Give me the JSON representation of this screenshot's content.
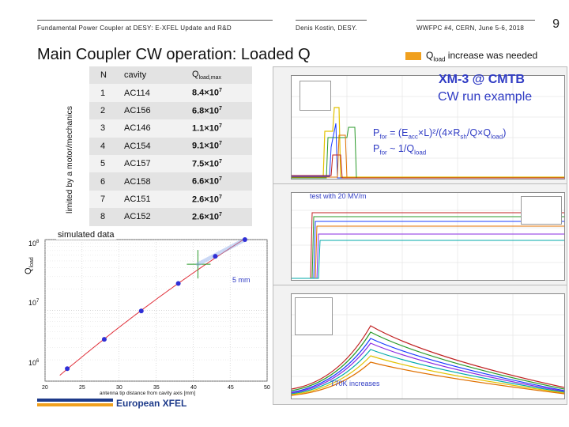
{
  "header": {
    "left": "Fundamental Power Coupler at DESY: E-XFEL Update and R&D",
    "middle": "Denis Kostin, DESY.",
    "right": "WWFPC #4, CERN, June 5-6, 2018",
    "page_number": "9"
  },
  "title": "Main Coupler CW operation: Loaded Q",
  "q_increase": {
    "prefix": "Q",
    "sub": "load",
    "suffix": " increase was needed",
    "color": "#f0a01e"
  },
  "vertical_label": "limited by a motor/mechanics",
  "table": {
    "headers": {
      "n": "N",
      "cavity": "cavity",
      "q": "Q",
      "q_sub": "load,max"
    },
    "rows": [
      {
        "n": "1",
        "cavity": "AC114",
        "mant": "8.4×10",
        "exp": "7"
      },
      {
        "n": "2",
        "cavity": "AC156",
        "mant": "6.8×10",
        "exp": "7"
      },
      {
        "n": "3",
        "cavity": "AC146",
        "mant": "1.1×10",
        "exp": "7"
      },
      {
        "n": "4",
        "cavity": "AC154",
        "mant": "9.1×10",
        "exp": "7"
      },
      {
        "n": "5",
        "cavity": "AC157",
        "mant": "7.5×10",
        "exp": "7"
      },
      {
        "n": "6",
        "cavity": "AC158",
        "mant": "6.6×10",
        "exp": "7"
      },
      {
        "n": "7",
        "cavity": "AC151",
        "mant": "2.6×10",
        "exp": "7"
      },
      {
        "n": "8",
        "cavity": "AC152",
        "mant": "2.6×10",
        "exp": "7"
      }
    ]
  },
  "annotations": {
    "xm3": "XM-3 @ CMTB",
    "cw_run": "CW run example",
    "pfor1": {
      "a": "P",
      "a_sub": "for",
      "b": " = (E",
      "b_sub": "acc",
      "c": "×L)²/(4×R",
      "c_sub": "sh",
      "d": "/Q×Q",
      "d_sub": "load",
      "e": ")"
    },
    "pfor2": {
      "a": "P",
      "a_sub": "for",
      "b": " ~ 1/Q",
      "b_sub": "load"
    },
    "test20": "test with 20 MV/m",
    "t70k": "T70K increases",
    "sim_data": "simulated data",
    "mm5": "5 mm"
  },
  "sim_chart": {
    "ylabel": "Q",
    "ylabel_sub": "load",
    "yticks": [
      "10",
      "10",
      "10"
    ],
    "ytick_exp": [
      "8",
      "7",
      "6"
    ],
    "xticks": [
      "20",
      "25",
      "30",
      "35",
      "40",
      "45",
      "50"
    ],
    "xlabel": "antenna tip distance from cavity axis [mm]"
  },
  "chart_data": {
    "type": "scatter",
    "title": "",
    "xlabel": "antenna tip distance from cavity axis [mm]",
    "ylabel": "Qload",
    "log_y": true,
    "xlim": [
      20,
      50
    ],
    "ylim": [
      1000000,
      100000000
    ],
    "x": [
      23,
      28,
      33,
      38,
      43,
      47
    ],
    "y": [
      1500000,
      3900000,
      9800000,
      24000000,
      58000000,
      100000000
    ]
  },
  "logo": {
    "text": "European XFEL",
    "colors": {
      "blue": "#1d3a8a",
      "orange": "#f0a01e"
    }
  },
  "colors": {
    "annot_blue": "#2f3bc4",
    "fit_red": "#e0303a",
    "point_blue": "#2f2fd6"
  }
}
